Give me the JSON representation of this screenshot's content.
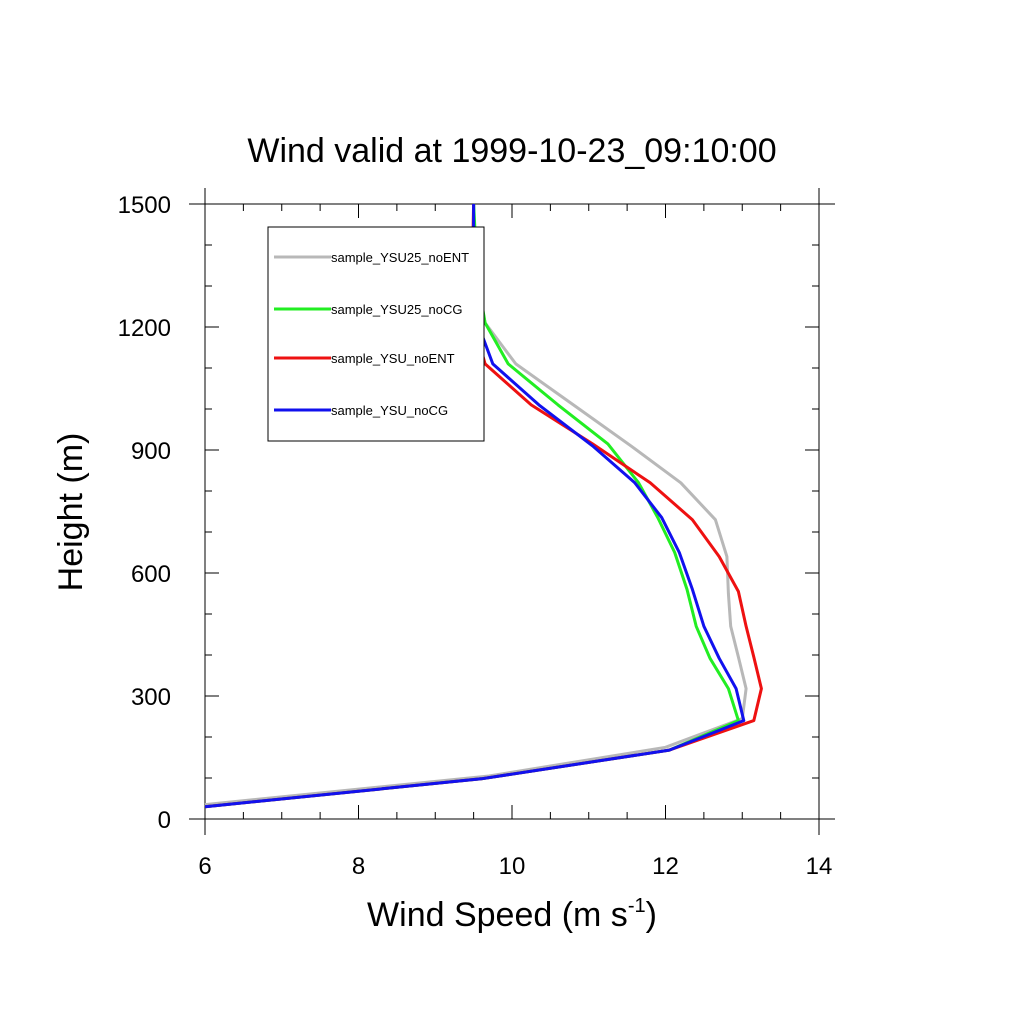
{
  "chart_data": {
    "type": "line",
    "title": "Wind valid at 1999-10-23_09:10:00",
    "xlabel": {
      "main": "Wind Speed (m s",
      "superscript": "-1",
      "tail": ")"
    },
    "ylabel": "Height (m)",
    "xlim": [
      6,
      14
    ],
    "ylim": [
      0,
      1500
    ],
    "x_ticks": [
      6,
      8,
      10,
      12,
      14
    ],
    "y_ticks": [
      0,
      300,
      600,
      900,
      1200,
      1500
    ],
    "x_tick_labels": [
      "6",
      "8",
      "10",
      "12",
      "14"
    ],
    "y_tick_labels": [
      "0",
      "300",
      "600",
      "900",
      "1200",
      "1500"
    ],
    "legend_position": "top-left",
    "series": [
      {
        "name": "sample_YSU25_noENT",
        "color": "#b8b8b8",
        "points": [
          [
            6.0,
            35
          ],
          [
            9.7,
            105
          ],
          [
            12.0,
            175
          ],
          [
            13.0,
            245
          ],
          [
            13.05,
            318
          ],
          [
            12.95,
            395
          ],
          [
            12.85,
            470
          ],
          [
            12.82,
            550
          ],
          [
            12.8,
            640
          ],
          [
            12.65,
            730
          ],
          [
            12.2,
            820
          ],
          [
            11.55,
            910
          ],
          [
            10.8,
            1010
          ],
          [
            10.05,
            1110
          ],
          [
            9.65,
            1210
          ],
          [
            9.53,
            1320
          ],
          [
            9.5,
            1500
          ]
        ]
      },
      {
        "name": "sample_YSU25_noCG",
        "color": "#22ee22",
        "points": [
          [
            6.0,
            30
          ],
          [
            9.6,
            98
          ],
          [
            12.05,
            168
          ],
          [
            12.95,
            240
          ],
          [
            12.82,
            318
          ],
          [
            12.58,
            392
          ],
          [
            12.4,
            470
          ],
          [
            12.28,
            560
          ],
          [
            12.12,
            650
          ],
          [
            11.9,
            735
          ],
          [
            11.65,
            820
          ],
          [
            11.25,
            915
          ],
          [
            10.6,
            1010
          ],
          [
            9.95,
            1110
          ],
          [
            9.65,
            1210
          ],
          [
            9.55,
            1320
          ],
          [
            9.5,
            1500
          ]
        ]
      },
      {
        "name": "sample_YSU_noENT",
        "color": "#ee1111",
        "points": [
          [
            6.0,
            30
          ],
          [
            9.6,
            98
          ],
          [
            12.05,
            168
          ],
          [
            13.15,
            240
          ],
          [
            13.25,
            318
          ],
          [
            13.15,
            395
          ],
          [
            13.05,
            470
          ],
          [
            12.95,
            555
          ],
          [
            12.7,
            640
          ],
          [
            12.35,
            730
          ],
          [
            11.8,
            820
          ],
          [
            11.05,
            915
          ],
          [
            10.25,
            1010
          ],
          [
            9.65,
            1110
          ],
          [
            9.5,
            1210
          ],
          [
            9.48,
            1320
          ],
          [
            9.5,
            1500
          ]
        ]
      },
      {
        "name": "sample_YSU_noCG",
        "color": "#1111ee",
        "points": [
          [
            6.0,
            30
          ],
          [
            9.6,
            98
          ],
          [
            12.05,
            168
          ],
          [
            13.02,
            240
          ],
          [
            12.92,
            318
          ],
          [
            12.7,
            392
          ],
          [
            12.5,
            470
          ],
          [
            12.35,
            560
          ],
          [
            12.18,
            650
          ],
          [
            11.95,
            735
          ],
          [
            11.6,
            820
          ],
          [
            11.05,
            910
          ],
          [
            10.35,
            1010
          ],
          [
            9.75,
            1110
          ],
          [
            9.55,
            1210
          ],
          [
            9.5,
            1320
          ],
          [
            9.5,
            1500
          ]
        ]
      }
    ]
  }
}
